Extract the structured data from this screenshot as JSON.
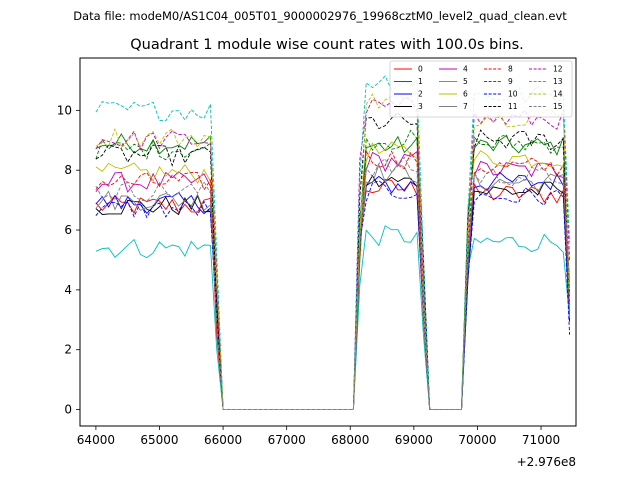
{
  "figure": {
    "suptitle": "Data file: modeM0/AS1C04_005T01_9000002976_19968cztM0_level2_quad_clean.evt"
  },
  "chart_data": {
    "type": "line",
    "title": "Quadrant 1 module wise count rates with 100.0s bins.",
    "xlabel": "",
    "ylabel": "",
    "x_offset_label": "+2.976e8",
    "xlim": [
      63750,
      71550
    ],
    "ylim": [
      -0.55,
      11.75
    ],
    "xticks": [
      64000,
      65000,
      66000,
      67000,
      68000,
      69000,
      70000,
      71000
    ],
    "xtick_labels": [
      "64000",
      "65000",
      "66000",
      "67000",
      "68000",
      "69000",
      "70000",
      "71000"
    ],
    "yticks": [
      0,
      2,
      4,
      6,
      8,
      10
    ],
    "ytick_labels": [
      "0",
      "2",
      "4",
      "6",
      "8",
      "10"
    ],
    "grid": false,
    "legend": {
      "placement": "top-right",
      "columns": 4
    },
    "segments": [
      {
        "start": 64000,
        "end": 65900,
        "bin": 100
      },
      {
        "start": 68150,
        "end": 69150,
        "bin": 100
      },
      {
        "start": 69850,
        "end": 71450,
        "bin": 100
      }
    ],
    "gap_points": [
      [
        66000,
        0
      ],
      [
        66100,
        0
      ],
      [
        66200,
        0
      ],
      [
        66300,
        0
      ],
      [
        66400,
        0
      ],
      [
        66500,
        0
      ],
      [
        66600,
        0
      ],
      [
        66700,
        0
      ],
      [
        66800,
        0
      ],
      [
        66900,
        0
      ],
      [
        67000,
        0
      ],
      [
        67100,
        0
      ],
      [
        67200,
        0
      ],
      [
        67300,
        0
      ],
      [
        67400,
        0
      ],
      [
        67500,
        0
      ],
      [
        67600,
        0
      ],
      [
        67700,
        0
      ],
      [
        67800,
        0
      ],
      [
        67900,
        0
      ],
      [
        68050,
        0
      ],
      [
        69250,
        0
      ],
      [
        69350,
        0
      ],
      [
        69450,
        0
      ],
      [
        69550,
        0
      ],
      [
        69650,
        0
      ],
      [
        69750,
        0
      ]
    ],
    "series": [
      {
        "name": "0",
        "color": "#ff0000",
        "dash": "solid",
        "levels": [
          6.8,
          7.4,
          7.2
        ]
      },
      {
        "name": "1",
        "color": "#008000",
        "dash": "solid",
        "levels": [
          8.9,
          8.8,
          8.8
        ]
      },
      {
        "name": "2",
        "color": "#0000ff",
        "dash": "solid",
        "levels": [
          6.9,
          7.5,
          7.6
        ]
      },
      {
        "name": "3",
        "color": "#000000",
        "dash": "solid",
        "levels": [
          6.8,
          7.6,
          7.3
        ]
      },
      {
        "name": "4",
        "color": "#bf00bf",
        "dash": "solid",
        "levels": [
          7.6,
          8.3,
          8.0
        ]
      },
      {
        "name": "5",
        "color": "#00bfbf",
        "dash": "solid",
        "levels": [
          5.4,
          5.8,
          5.6
        ]
      },
      {
        "name": "6",
        "color": "#bfbf00",
        "dash": "solid",
        "levels": [
          7.9,
          8.6,
          8.4
        ]
      },
      {
        "name": "7",
        "color": "#808080",
        "dash": "solid",
        "levels": [
          7.0,
          7.9,
          7.6
        ]
      },
      {
        "name": "8",
        "color": "#ff0000",
        "dash": "dashed",
        "levels": [
          7.6,
          8.4,
          8.1
        ]
      },
      {
        "name": "9",
        "color": "#008000",
        "dash": "dashed",
        "levels": [
          8.7,
          9.0,
          8.9
        ]
      },
      {
        "name": "10",
        "color": "#0000ff",
        "dash": "dashed",
        "levels": [
          6.7,
          7.3,
          7.1
        ]
      },
      {
        "name": "11",
        "color": "#000000",
        "dash": "dashed",
        "levels": [
          8.5,
          9.6,
          9.0
        ]
      },
      {
        "name": "12",
        "color": "#bf00bf",
        "dash": "dashed",
        "levels": [
          9.0,
          10.1,
          9.7
        ]
      },
      {
        "name": "13",
        "color": "#00bfbf",
        "dash": "dashed",
        "levels": [
          10.0,
          11.0,
          10.5
        ]
      },
      {
        "name": "14",
        "color": "#bfbf00",
        "dash": "dashed",
        "levels": [
          9.1,
          10.3,
          9.8
        ]
      },
      {
        "name": "15",
        "color": "#808080",
        "dash": "dashed",
        "levels": [
          7.3,
          8.1,
          7.8
        ]
      }
    ]
  }
}
